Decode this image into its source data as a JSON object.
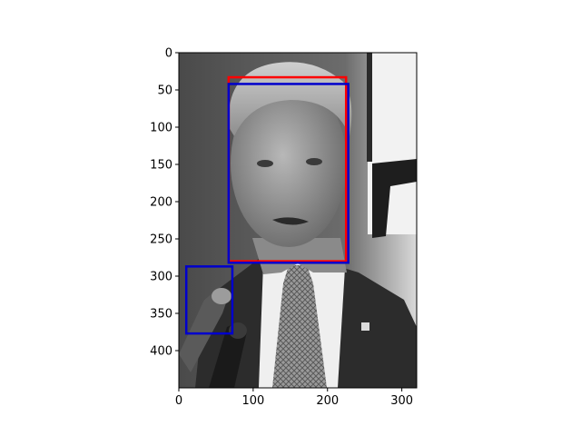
{
  "figure": {
    "image_subject": "grayscale portrait photograph of a man in suit and tie speaking at a microphone",
    "image_extent": {
      "x": [
        0,
        320
      ],
      "y": [
        450,
        0
      ]
    },
    "x_ticks": [
      "0",
      "100",
      "200",
      "300"
    ],
    "y_ticks": [
      "0",
      "50",
      "100",
      "150",
      "200",
      "250",
      "300",
      "350",
      "400"
    ],
    "colors": {
      "background": "#ffffff",
      "axes": "#000000",
      "box_red": "#ff0000",
      "box_blue": "#0000cc"
    }
  },
  "chart_data": {
    "type": "image-with-bounding-boxes",
    "xlim": [
      0,
      320
    ],
    "ylim": [
      450,
      0
    ],
    "x_ticks": [
      0,
      100,
      200,
      300
    ],
    "y_ticks": [
      0,
      50,
      100,
      150,
      200,
      250,
      300,
      350,
      400
    ],
    "boxes": [
      {
        "color": "#ff0000",
        "x0": 67,
        "y0": 33,
        "x1": 225,
        "y1": 280
      },
      {
        "color": "#0000cc",
        "x0": 67,
        "y0": 42,
        "x1": 228,
        "y1": 282
      },
      {
        "color": "#0000cc",
        "x0": 10,
        "y0": 287,
        "x1": 72,
        "y1": 377
      }
    ]
  }
}
